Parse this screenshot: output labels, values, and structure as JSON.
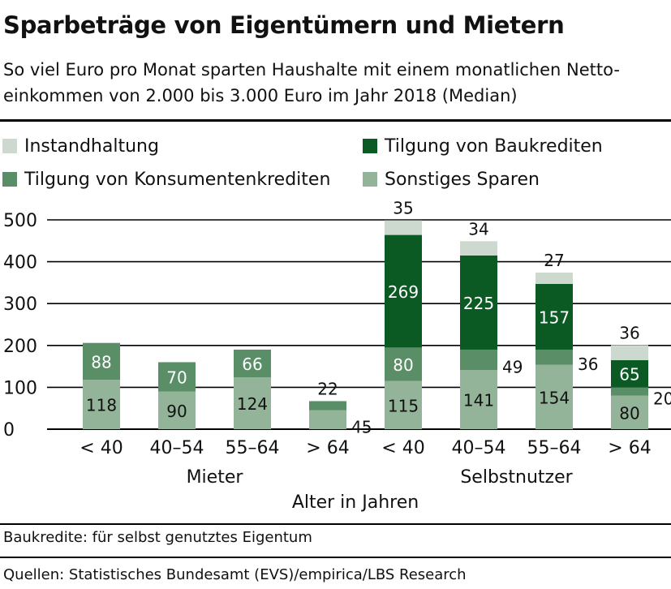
{
  "header": {
    "title": "Sparbeträge von Eigentümern und Mietern",
    "subtitle": "So viel Euro pro Monat sparten Haushalte mit einem monatlichen Netto-einkommen von 2.000 bis 3.000 Euro im Jahr 2018 (Median)"
  },
  "footer": {
    "note": "Baukredite: für selbst genutztes Eigentum",
    "source": "Quellen: Statistisches Bundesamt (EVS)/empirica/LBS Research"
  },
  "chart_data": {
    "type": "bar",
    "stacked": true,
    "categories": [
      "< 40",
      "40–54",
      "55–64",
      "> 64",
      "< 40",
      "40–54",
      "55–64",
      "> 64"
    ],
    "groups": [
      {
        "label": "Mieter",
        "categories": [
          0,
          1,
          2,
          3
        ]
      },
      {
        "label": "Selbstnutzer",
        "categories": [
          4,
          5,
          6,
          7
        ]
      }
    ],
    "series": [
      {
        "name": "Sonstiges Sparen",
        "color": "#94b49a",
        "values": [
          118,
          90,
          124,
          45,
          115,
          141,
          154,
          80
        ]
      },
      {
        "name": "Tilgung von Konsumentenkrediten",
        "color": "#5a8e66",
        "values": [
          88,
          70,
          66,
          22,
          80,
          49,
          36,
          20
        ]
      },
      {
        "name": "Tilgung von Baukrediten",
        "color": "#0b5a24",
        "values": [
          0,
          0,
          0,
          0,
          269,
          225,
          157,
          65
        ]
      },
      {
        "name": "Instandhaltung",
        "color": "#cdd9ce",
        "values": [
          0,
          0,
          0,
          0,
          35,
          34,
          27,
          36
        ]
      }
    ],
    "legend": [
      {
        "name": "Instandhaltung",
        "color": "#cdd9ce"
      },
      {
        "name": "Tilgung von Baukrediten",
        "color": "#0b5a24"
      },
      {
        "name": "Tilgung von Konsumentenkrediten",
        "color": "#5a8e66"
      },
      {
        "name": "Sonstiges Sparen",
        "color": "#94b49a"
      }
    ],
    "legend_placement": "top",
    "xlabel": "Alter in Jahren",
    "ylabel": "",
    "ylim": [
      0,
      500
    ],
    "yticks": [
      0,
      100,
      200,
      300,
      400,
      500
    ],
    "grid": true
  }
}
